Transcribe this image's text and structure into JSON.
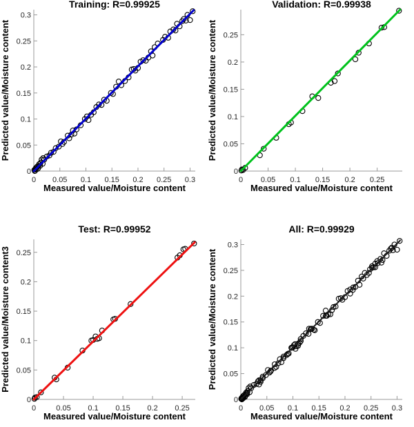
{
  "figure": {
    "background": "#ffffff",
    "axis_color": "#999999",
    "tick_label_color": "#262626",
    "text_color": "#000000",
    "marker_color": "#000000"
  },
  "chart_data": [
    {
      "id": "training",
      "type": "scatter",
      "title": "Training: R=0.99925",
      "r_value": 0.99925,
      "xlabel": "Measured value/Moisture content",
      "ylabel": "Predicted value/Moisture content",
      "xlim": [
        0,
        0.31
      ],
      "ylim": [
        0,
        0.31
      ],
      "xticks": [
        0,
        0.05,
        0.1,
        0.15,
        0.2,
        0.25,
        0.3
      ],
      "yticks": [
        0,
        0.05,
        0.1,
        0.15,
        0.2,
        0.25,
        0.3
      ],
      "xtick_labels": [
        "0",
        "0.05",
        "0.1",
        "0.15",
        "0.2",
        "0.25",
        "0.3"
      ],
      "ytick_labels": [
        "0",
        "0.05",
        "0.1",
        "0.15",
        "0.2",
        "0.25",
        "0.3"
      ],
      "grid": false,
      "legend": "none",
      "line_color": "#0000cc",
      "line_width": 3,
      "fit_line": [
        [
          0,
          0
        ],
        [
          0.307,
          0.309
        ]
      ],
      "marker": {
        "shape": "circle",
        "color": "#000000",
        "radius": 3.6
      },
      "points": [
        [
          0.001,
          0.002
        ],
        [
          0.002,
          0.0
        ],
        [
          0.003,
          0.004
        ],
        [
          0.004,
          0.006
        ],
        [
          0.005,
          0.003
        ],
        [
          0.006,
          0.008
        ],
        [
          0.008,
          0.005
        ],
        [
          0.009,
          0.01
        ],
        [
          0.01,
          0.013
        ],
        [
          0.012,
          0.01
        ],
        [
          0.013,
          0.016
        ],
        [
          0.015,
          0.022
        ],
        [
          0.017,
          0.014
        ],
        [
          0.018,
          0.025
        ],
        [
          0.02,
          0.022
        ],
        [
          0.025,
          0.028
        ],
        [
          0.03,
          0.03
        ],
        [
          0.033,
          0.035
        ],
        [
          0.038,
          0.037
        ],
        [
          0.042,
          0.044
        ],
        [
          0.048,
          0.047
        ],
        [
          0.052,
          0.057
        ],
        [
          0.055,
          0.052
        ],
        [
          0.058,
          0.056
        ],
        [
          0.065,
          0.068
        ],
        [
          0.068,
          0.063
        ],
        [
          0.072,
          0.07
        ],
        [
          0.075,
          0.078
        ],
        [
          0.078,
          0.072
        ],
        [
          0.082,
          0.08
        ],
        [
          0.09,
          0.088
        ],
        [
          0.098,
          0.1
        ],
        [
          0.102,
          0.105
        ],
        [
          0.105,
          0.098
        ],
        [
          0.11,
          0.108
        ],
        [
          0.115,
          0.113
        ],
        [
          0.12,
          0.123
        ],
        [
          0.125,
          0.128
        ],
        [
          0.13,
          0.127
        ],
        [
          0.135,
          0.137
        ],
        [
          0.14,
          0.135
        ],
        [
          0.148,
          0.15
        ],
        [
          0.152,
          0.148
        ],
        [
          0.158,
          0.162
        ],
        [
          0.163,
          0.172
        ],
        [
          0.168,
          0.165
        ],
        [
          0.175,
          0.173
        ],
        [
          0.182,
          0.18
        ],
        [
          0.188,
          0.195
        ],
        [
          0.192,
          0.196
        ],
        [
          0.195,
          0.193
        ],
        [
          0.2,
          0.198
        ],
        [
          0.205,
          0.21
        ],
        [
          0.21,
          0.213
        ],
        [
          0.215,
          0.212
        ],
        [
          0.22,
          0.218
        ],
        [
          0.225,
          0.23
        ],
        [
          0.228,
          0.222
        ],
        [
          0.232,
          0.238
        ],
        [
          0.238,
          0.245
        ],
        [
          0.248,
          0.252
        ],
        [
          0.252,
          0.258
        ],
        [
          0.258,
          0.256
        ],
        [
          0.262,
          0.268
        ],
        [
          0.268,
          0.272
        ],
        [
          0.272,
          0.27
        ],
        [
          0.275,
          0.283
        ],
        [
          0.28,
          0.278
        ],
        [
          0.285,
          0.288
        ],
        [
          0.288,
          0.292
        ],
        [
          0.292,
          0.289
        ],
        [
          0.295,
          0.3
        ],
        [
          0.3,
          0.29
        ],
        [
          0.305,
          0.307
        ]
      ]
    },
    {
      "id": "validation",
      "type": "scatter",
      "title": "Validation: R=0.99938",
      "r_value": 0.99938,
      "xlabel": "Measured value/Moisture content",
      "ylabel": "Predicted value/Moisture content",
      "xlim": [
        0,
        0.296
      ],
      "ylim": [
        0,
        0.296
      ],
      "xticks": [
        0,
        0.05,
        0.1,
        0.15,
        0.2,
        0.25
      ],
      "yticks": [
        0,
        0.05,
        0.1,
        0.15,
        0.2,
        0.25
      ],
      "xtick_labels": [
        "0",
        "0.05",
        "0.1",
        "0.15",
        "0.2",
        "0.25"
      ],
      "ytick_labels": [
        "0",
        "0.05",
        "0.1",
        "0.15",
        "0.2",
        "0.25"
      ],
      "grid": false,
      "legend": "none",
      "line_color": "#00c21c",
      "line_width": 3,
      "fit_line": [
        [
          0,
          0
        ],
        [
          0.292,
          0.296
        ]
      ],
      "marker": {
        "shape": "circle",
        "color": "#000000",
        "radius": 3.6
      },
      "points": [
        [
          0.001,
          0.001
        ],
        [
          0.002,
          0.003
        ],
        [
          0.004,
          0.002
        ],
        [
          0.008,
          0.006
        ],
        [
          0.035,
          0.029
        ],
        [
          0.042,
          0.041
        ],
        [
          0.065,
          0.061
        ],
        [
          0.088,
          0.086
        ],
        [
          0.092,
          0.089
        ],
        [
          0.113,
          0.11
        ],
        [
          0.131,
          0.137
        ],
        [
          0.142,
          0.134
        ],
        [
          0.165,
          0.162
        ],
        [
          0.172,
          0.165
        ],
        [
          0.178,
          0.179
        ],
        [
          0.21,
          0.205
        ],
        [
          0.216,
          0.217
        ],
        [
          0.235,
          0.234
        ],
        [
          0.258,
          0.263
        ],
        [
          0.263,
          0.264
        ],
        [
          0.29,
          0.294
        ]
      ]
    },
    {
      "id": "test",
      "type": "scatter",
      "title": "Test: R=0.99952",
      "r_value": 0.99952,
      "xlabel": "Measured value/Moisture content",
      "ylabel": "Predicted value/Moisture content3",
      "xlim": [
        0,
        0.272
      ],
      "ylim": [
        0,
        0.272
      ],
      "xticks": [
        0,
        0.05,
        0.1,
        0.15,
        0.2,
        0.25
      ],
      "yticks": [
        0,
        0.05,
        0.1,
        0.15,
        0.2,
        0.25
      ],
      "xtick_labels": [
        "0",
        "0.05",
        "0.1",
        "0.15",
        "0.2",
        "0.25"
      ],
      "ytick_labels": [
        "0",
        "0.05",
        "0.1",
        "0.15",
        "0.2",
        "0.25"
      ],
      "grid": false,
      "legend": "none",
      "line_color": "#ee1111",
      "line_width": 3,
      "fit_line": [
        [
          0,
          0
        ],
        [
          0.271,
          0.267
        ]
      ],
      "marker": {
        "shape": "circle",
        "color": "#000000",
        "radius": 3.6
      },
      "points": [
        [
          0.001,
          0.001
        ],
        [
          0.002,
          0.003
        ],
        [
          0.005,
          0.004
        ],
        [
          0.012,
          0.012
        ],
        [
          0.035,
          0.037
        ],
        [
          0.038,
          0.034
        ],
        [
          0.057,
          0.054
        ],
        [
          0.082,
          0.083
        ],
        [
          0.097,
          0.1
        ],
        [
          0.1,
          0.101
        ],
        [
          0.104,
          0.107
        ],
        [
          0.107,
          0.103
        ],
        [
          0.11,
          0.104
        ],
        [
          0.115,
          0.117
        ],
        [
          0.134,
          0.136
        ],
        [
          0.137,
          0.137
        ],
        [
          0.163,
          0.162
        ],
        [
          0.242,
          0.241
        ],
        [
          0.246,
          0.245
        ],
        [
          0.252,
          0.255
        ],
        [
          0.255,
          0.256
        ],
        [
          0.27,
          0.265
        ]
      ]
    },
    {
      "id": "all",
      "type": "scatter",
      "title": "All: R=0.99929",
      "r_value": 0.99929,
      "xlabel": "Measured value/Moisture content",
      "ylabel": "Predicted value/Moisture content",
      "xlim": [
        0,
        0.31
      ],
      "ylim": [
        0,
        0.31
      ],
      "xticks": [
        0,
        0.05,
        0.1,
        0.15,
        0.2,
        0.25,
        0.3
      ],
      "yticks": [
        0,
        0.05,
        0.1,
        0.15,
        0.2,
        0.25,
        0.3
      ],
      "xtick_labels": [
        "0",
        "0.05",
        "0.1",
        "0.15",
        "0.2",
        "0.25",
        "0.3"
      ],
      "ytick_labels": [
        "0",
        "0.05",
        "0.1",
        "0.15",
        "0.2",
        "0.25",
        "0.3"
      ],
      "grid": false,
      "legend": "none",
      "line_color": "#1a1a1a",
      "line_width": 2,
      "fit_line": [
        [
          0,
          0
        ],
        [
          0.306,
          0.308
        ]
      ],
      "marker": {
        "shape": "circle",
        "color": "#000000",
        "radius": 3.6
      },
      "points": [
        [
          0.001,
          0.002
        ],
        [
          0.002,
          0.0
        ],
        [
          0.003,
          0.004
        ],
        [
          0.004,
          0.006
        ],
        [
          0.005,
          0.003
        ],
        [
          0.006,
          0.008
        ],
        [
          0.008,
          0.005
        ],
        [
          0.009,
          0.01
        ],
        [
          0.01,
          0.013
        ],
        [
          0.012,
          0.01
        ],
        [
          0.013,
          0.016
        ],
        [
          0.015,
          0.022
        ],
        [
          0.017,
          0.014
        ],
        [
          0.018,
          0.025
        ],
        [
          0.02,
          0.022
        ],
        [
          0.025,
          0.028
        ],
        [
          0.03,
          0.03
        ],
        [
          0.033,
          0.035
        ],
        [
          0.038,
          0.037
        ],
        [
          0.042,
          0.044
        ],
        [
          0.048,
          0.047
        ],
        [
          0.052,
          0.057
        ],
        [
          0.055,
          0.052
        ],
        [
          0.058,
          0.056
        ],
        [
          0.065,
          0.068
        ],
        [
          0.068,
          0.063
        ],
        [
          0.072,
          0.07
        ],
        [
          0.075,
          0.078
        ],
        [
          0.078,
          0.072
        ],
        [
          0.082,
          0.08
        ],
        [
          0.09,
          0.088
        ],
        [
          0.098,
          0.1
        ],
        [
          0.102,
          0.105
        ],
        [
          0.105,
          0.098
        ],
        [
          0.11,
          0.108
        ],
        [
          0.115,
          0.113
        ],
        [
          0.12,
          0.123
        ],
        [
          0.125,
          0.128
        ],
        [
          0.13,
          0.127
        ],
        [
          0.135,
          0.137
        ],
        [
          0.14,
          0.135
        ],
        [
          0.148,
          0.15
        ],
        [
          0.152,
          0.148
        ],
        [
          0.158,
          0.162
        ],
        [
          0.163,
          0.172
        ],
        [
          0.168,
          0.165
        ],
        [
          0.175,
          0.173
        ],
        [
          0.182,
          0.18
        ],
        [
          0.188,
          0.195
        ],
        [
          0.192,
          0.196
        ],
        [
          0.195,
          0.193
        ],
        [
          0.2,
          0.198
        ],
        [
          0.205,
          0.21
        ],
        [
          0.21,
          0.213
        ],
        [
          0.215,
          0.212
        ],
        [
          0.22,
          0.218
        ],
        [
          0.225,
          0.23
        ],
        [
          0.228,
          0.222
        ],
        [
          0.232,
          0.238
        ],
        [
          0.238,
          0.245
        ],
        [
          0.248,
          0.252
        ],
        [
          0.252,
          0.258
        ],
        [
          0.258,
          0.256
        ],
        [
          0.262,
          0.268
        ],
        [
          0.268,
          0.272
        ],
        [
          0.272,
          0.27
        ],
        [
          0.275,
          0.283
        ],
        [
          0.28,
          0.278
        ],
        [
          0.285,
          0.288
        ],
        [
          0.288,
          0.292
        ],
        [
          0.292,
          0.289
        ],
        [
          0.295,
          0.3
        ],
        [
          0.3,
          0.29
        ],
        [
          0.305,
          0.307
        ],
        [
          0.001,
          0.001
        ],
        [
          0.002,
          0.003
        ],
        [
          0.004,
          0.002
        ],
        [
          0.008,
          0.006
        ],
        [
          0.035,
          0.029
        ],
        [
          0.042,
          0.041
        ],
        [
          0.065,
          0.061
        ],
        [
          0.088,
          0.086
        ],
        [
          0.092,
          0.089
        ],
        [
          0.113,
          0.11
        ],
        [
          0.131,
          0.137
        ],
        [
          0.142,
          0.134
        ],
        [
          0.165,
          0.162
        ],
        [
          0.172,
          0.165
        ],
        [
          0.178,
          0.179
        ],
        [
          0.21,
          0.205
        ],
        [
          0.216,
          0.217
        ],
        [
          0.235,
          0.234
        ],
        [
          0.258,
          0.263
        ],
        [
          0.263,
          0.264
        ],
        [
          0.29,
          0.294
        ],
        [
          0.001,
          0.001
        ],
        [
          0.002,
          0.003
        ],
        [
          0.005,
          0.004
        ],
        [
          0.012,
          0.012
        ],
        [
          0.035,
          0.037
        ],
        [
          0.038,
          0.034
        ],
        [
          0.057,
          0.054
        ],
        [
          0.082,
          0.083
        ],
        [
          0.097,
          0.1
        ],
        [
          0.1,
          0.101
        ],
        [
          0.104,
          0.107
        ],
        [
          0.107,
          0.103
        ],
        [
          0.11,
          0.104
        ],
        [
          0.115,
          0.117
        ],
        [
          0.134,
          0.136
        ],
        [
          0.137,
          0.137
        ],
        [
          0.163,
          0.162
        ],
        [
          0.242,
          0.241
        ],
        [
          0.246,
          0.245
        ],
        [
          0.252,
          0.255
        ],
        [
          0.255,
          0.256
        ],
        [
          0.27,
          0.265
        ]
      ]
    }
  ]
}
